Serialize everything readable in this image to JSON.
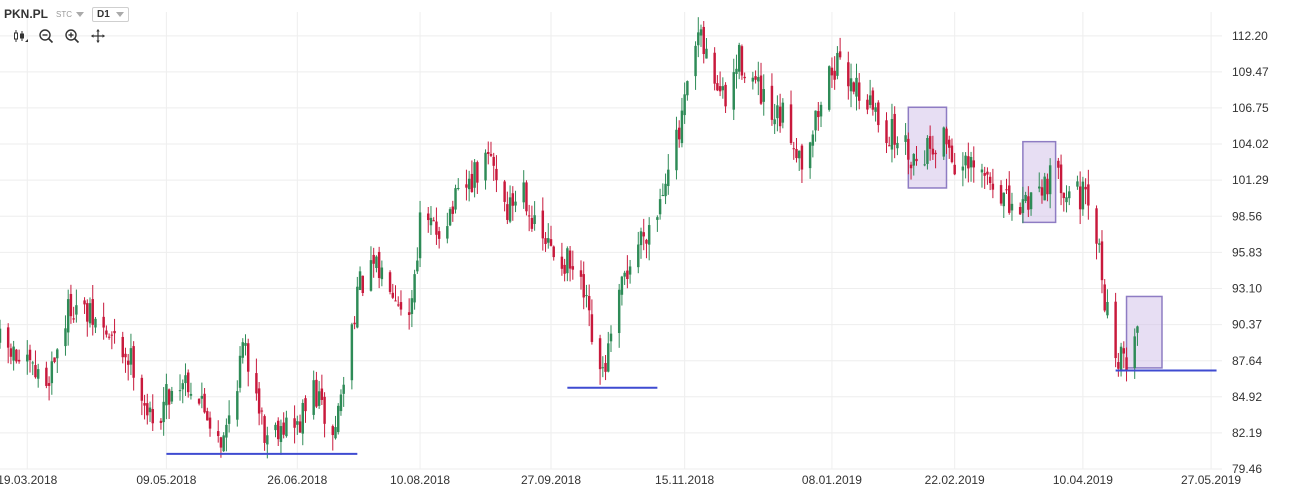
{
  "header": {
    "symbol": "PKN.PL",
    "type_label": "STC",
    "timeframe": "D1"
  },
  "toolbar": {
    "icons": [
      "candlestick-icon",
      "zoom-out-icon",
      "zoom-in-icon",
      "move-icon"
    ]
  },
  "colors": {
    "up": "#2e8b57",
    "down": "#c8193c",
    "grid": "#eeeeee",
    "support_line": "#3f4bd1",
    "box_fill": "#c9b6e4",
    "box_stroke": "#8e7cc3"
  },
  "chart_data": {
    "type": "candlestick",
    "title": "",
    "xlabel": "",
    "ylabel": "",
    "ylim": [
      79.46,
      114.0
    ],
    "y_ticks": [
      "112.20",
      "109.47",
      "106.75",
      "104.02",
      "101.29",
      "98.56",
      "95.83",
      "93.10",
      "90.37",
      "87.64",
      "84.92",
      "82.19",
      "79.46"
    ],
    "x_ticks": [
      "19.03.2018",
      "09.05.2018",
      "26.06.2018",
      "10.08.2018",
      "27.09.2018",
      "15.11.2018",
      "08.01.2019",
      "22.02.2019",
      "10.04.2019",
      "27.05.2019"
    ],
    "x_range": [
      "2018-03-09",
      "2019-05-31"
    ],
    "grid": true,
    "series": [
      {
        "close_points": [
          [
            "2018-03-09",
            89.0
          ],
          [
            "2018-03-19",
            87.0
          ],
          [
            "2018-03-26",
            86.0
          ],
          [
            "2018-04-04",
            92.0
          ],
          [
            "2018-04-13",
            90.5
          ],
          [
            "2018-04-20",
            89.0
          ],
          [
            "2018-04-27",
            87.5
          ],
          [
            "2018-05-04",
            82.5
          ],
          [
            "2018-05-09",
            85.0
          ],
          [
            "2018-05-16",
            86.5
          ],
          [
            "2018-05-23",
            84.0
          ],
          [
            "2018-05-30",
            81.5
          ],
          [
            "2018-06-06",
            88.5
          ],
          [
            "2018-06-11",
            86.0
          ],
          [
            "2018-06-14",
            82.0
          ],
          [
            "2018-06-20",
            83.0
          ],
          [
            "2018-06-26",
            82.5
          ],
          [
            "2018-07-02",
            85.5
          ],
          [
            "2018-07-09",
            81.8
          ],
          [
            "2018-07-13",
            86.0
          ],
          [
            "2018-07-18",
            93.0
          ],
          [
            "2018-07-24",
            94.5
          ],
          [
            "2018-07-30",
            94.0
          ],
          [
            "2018-08-06",
            91.0
          ],
          [
            "2018-08-10",
            98.0
          ],
          [
            "2018-08-16",
            97.5
          ],
          [
            "2018-08-23",
            99.5
          ],
          [
            "2018-08-30",
            101.5
          ],
          [
            "2018-09-05",
            103.0
          ],
          [
            "2018-09-11",
            99.0
          ],
          [
            "2018-09-17",
            101.0
          ],
          [
            "2018-09-21",
            97.5
          ],
          [
            "2018-09-27",
            96.0
          ],
          [
            "2018-10-03",
            95.0
          ],
          [
            "2018-10-09",
            92.5
          ],
          [
            "2018-10-15",
            86.0
          ],
          [
            "2018-10-19",
            89.0
          ],
          [
            "2018-10-24",
            94.0
          ],
          [
            "2018-10-30",
            97.0
          ],
          [
            "2018-11-05",
            99.0
          ],
          [
            "2018-11-09",
            103.0
          ],
          [
            "2018-11-13",
            104.5
          ],
          [
            "2018-11-16",
            108.0
          ],
          [
            "2018-11-20",
            112.0
          ],
          [
            "2018-11-26",
            109.0
          ],
          [
            "2018-11-30",
            107.0
          ],
          [
            "2018-12-05",
            110.5
          ],
          [
            "2018-12-11",
            108.5
          ],
          [
            "2018-12-17",
            105.5
          ],
          [
            "2018-12-21",
            106.0
          ],
          [
            "2018-12-28",
            103.0
          ],
          [
            "2019-01-04",
            107.0
          ],
          [
            "2019-01-08",
            110.0
          ],
          [
            "2019-01-15",
            109.0
          ],
          [
            "2019-01-22",
            107.0
          ],
          [
            "2019-01-28",
            105.0
          ],
          [
            "2019-02-01",
            104.5
          ],
          [
            "2019-02-07",
            103.0
          ],
          [
            "2019-02-13",
            104.0
          ],
          [
            "2019-02-19",
            104.5
          ],
          [
            "2019-02-22",
            102.5
          ],
          [
            "2019-02-27",
            102.0
          ],
          [
            "2019-03-05",
            101.5
          ],
          [
            "2019-03-11",
            100.5
          ],
          [
            "2019-03-15",
            98.5
          ],
          [
            "2019-03-19",
            99.5
          ],
          [
            "2019-03-25",
            101.0
          ],
          [
            "2019-03-29",
            101.5
          ],
          [
            "2019-04-04",
            101.0
          ],
          [
            "2019-04-10",
            100.0
          ],
          [
            "2019-04-15",
            97.0
          ],
          [
            "2019-04-18",
            92.5
          ],
          [
            "2019-04-23",
            87.5
          ],
          [
            "2019-04-26",
            88.0
          ],
          [
            "2019-04-30",
            90.0
          ]
        ]
      }
    ],
    "annotations": {
      "support_lines": [
        {
          "x1": "2018-05-09",
          "x2": "2018-07-18",
          "y": 80.6
        },
        {
          "x1": "2018-10-03",
          "x2": "2018-11-05",
          "y": 85.6
        },
        {
          "x1": "2019-04-22",
          "x2": "2019-05-29",
          "y": 86.9
        }
      ],
      "boxes": [
        {
          "x1": "2019-02-05",
          "x2": "2019-02-19",
          "y1": 100.7,
          "y2": 106.8
        },
        {
          "x1": "2019-03-19",
          "x2": "2019-03-31",
          "y1": 98.1,
          "y2": 104.2
        },
        {
          "x1": "2019-04-26",
          "x2": "2019-05-09",
          "y1": 87.1,
          "y2": 92.5
        }
      ]
    }
  }
}
